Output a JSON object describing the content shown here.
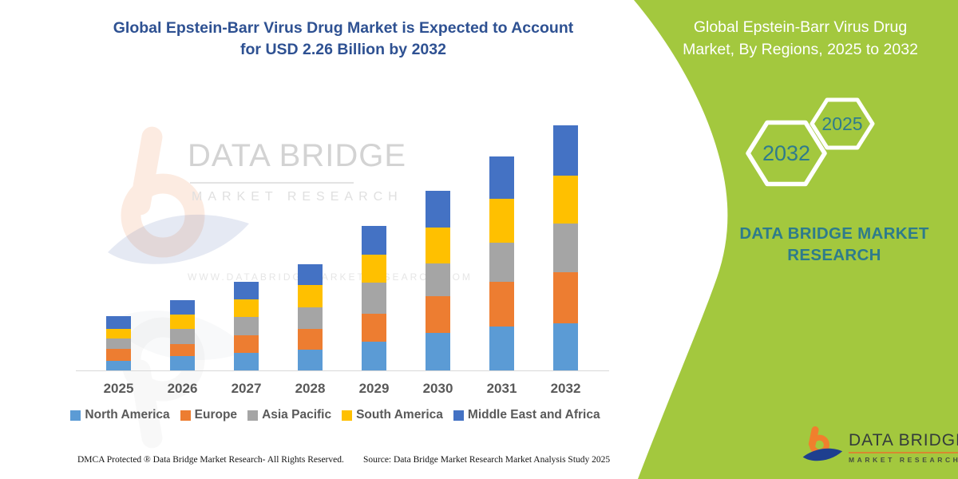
{
  "main": {
    "title_line1": "Global Epstein-Barr Virus Drug Market is Expected to Account",
    "title_line2": "for USD 2.26 Billion by 2032",
    "footer_left": "DMCA Protected ® Data Bridge Market Research-  All Rights Reserved.",
    "footer_right": "Source: Data Bridge Market Research  Market Analysis Study 2025"
  },
  "watermark": {
    "brand": "DATA BRIDGE",
    "sub": "MARKET RESEARCH",
    "url": "WWW.DATABRIDGEMARKETRESEARCH.COM"
  },
  "sidebar": {
    "title_line1": "Global Epstein-Barr Virus Drug",
    "title_line2": "Market, By Regions, 2025 to 2032",
    "hex_year_far": "2032",
    "hex_year_near": "2025",
    "brand_line1": "DATA BRIDGE MARKET",
    "brand_line2": "RESEARCH",
    "logo_brand": "DATA BRIDGE",
    "logo_sub": "MARKET RESEARCH",
    "panel_green": "#a3c83e",
    "teal": "#2e7b8c"
  },
  "chart_data": {
    "type": "bar",
    "stacked": true,
    "title": "Global Epstein-Barr Virus Drug Market, By Regions, 2025 to 2032",
    "unit": "USD Billion",
    "projected_total_2032": "USD 2.26 Billion",
    "categories": [
      "2025",
      "2026",
      "2027",
      "2028",
      "2029",
      "2030",
      "2031",
      "2032"
    ],
    "series": [
      {
        "name": "North America",
        "color": "#5B9BD5",
        "values": [
          0.09,
          0.13,
          0.16,
          0.19,
          0.26,
          0.34,
          0.4,
          0.43
        ]
      },
      {
        "name": "Europe",
        "color": "#ED7D31",
        "values": [
          0.11,
          0.11,
          0.16,
          0.19,
          0.26,
          0.34,
          0.41,
          0.47
        ]
      },
      {
        "name": "Asia Pacific",
        "color": "#A5A5A5",
        "values": [
          0.09,
          0.14,
          0.17,
          0.2,
          0.28,
          0.3,
          0.36,
          0.44
        ]
      },
      {
        "name": "South America",
        "color": "#FFC000",
        "values": [
          0.09,
          0.13,
          0.16,
          0.2,
          0.26,
          0.33,
          0.4,
          0.44
        ]
      },
      {
        "name": "Middle East and Africa",
        "color": "#4472C4",
        "values": [
          0.12,
          0.13,
          0.16,
          0.19,
          0.26,
          0.33,
          0.39,
          0.46
        ]
      }
    ],
    "stack_order_bottom_to_top": [
      "North America",
      "Europe",
      "Asia Pacific",
      "South America",
      "Middle East and Africa"
    ],
    "ylim": [
      0,
      2.4
    ],
    "grid": false,
    "legend_position": "bottom"
  }
}
